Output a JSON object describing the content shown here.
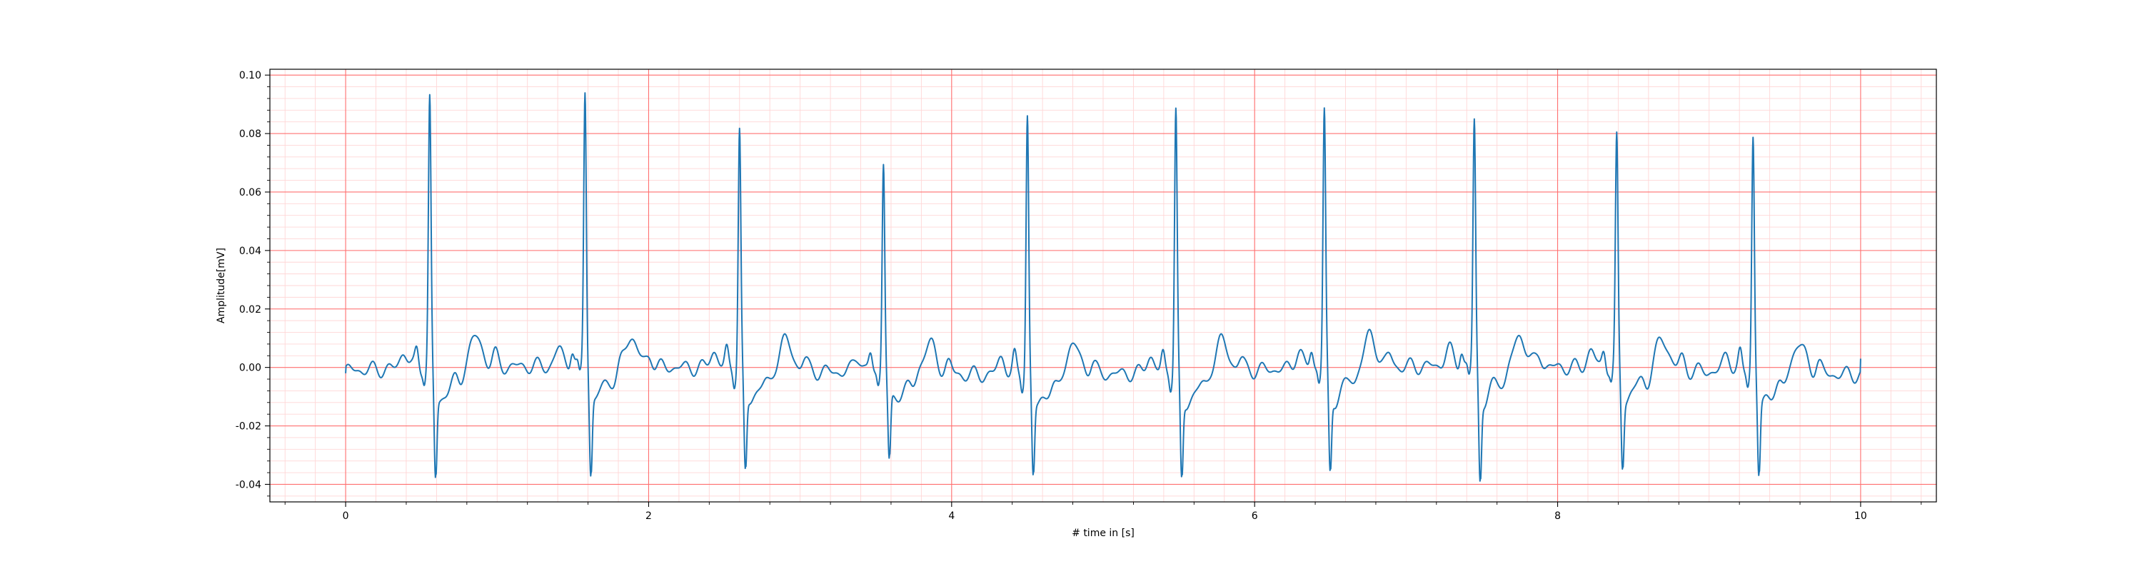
{
  "chart_data": {
    "type": "line",
    "title": "",
    "xlabel": "# time in [s]",
    "ylabel": "Amplitude[mV]",
    "xlim": [
      -0.5,
      10.5
    ],
    "ylim": [
      -0.046,
      0.102
    ],
    "x_ticks": [
      0,
      2,
      4,
      6,
      8,
      10
    ],
    "x_tick_labels": [
      "0",
      "2",
      "4",
      "6",
      "8",
      "10"
    ],
    "y_ticks": [
      -0.04,
      -0.02,
      0.0,
      0.02,
      0.04,
      0.06,
      0.08,
      0.1
    ],
    "y_tick_labels": [
      "-0.04",
      "-0.02",
      "0.00",
      "0.02",
      "0.04",
      "0.06",
      "0.08",
      "0.10"
    ],
    "grid": {
      "major": true,
      "minor": true,
      "major_color": "#ff7070",
      "minor_color": "#ffd6d6"
    },
    "legend": "none",
    "series": [
      {
        "color": "#1f77b4",
        "beats": [
          {
            "r_time": 0.555,
            "r_peak": 0.092,
            "s_trough": -0.038
          },
          {
            "r_time": 1.58,
            "r_peak": 0.095,
            "s_trough": -0.037
          },
          {
            "r_time": 2.6,
            "r_peak": 0.082,
            "s_trough": -0.036
          },
          {
            "r_time": 3.55,
            "r_peak": 0.073,
            "s_trough": -0.031
          },
          {
            "r_time": 4.5,
            "r_peak": 0.089,
            "s_trough": -0.035
          },
          {
            "r_time": 5.48,
            "r_peak": 0.09,
            "s_trough": -0.038
          },
          {
            "r_time": 6.46,
            "r_peak": 0.088,
            "s_trough": -0.037
          },
          {
            "r_time": 7.45,
            "r_peak": 0.084,
            "s_trough": -0.039
          },
          {
            "r_time": 8.39,
            "r_peak": 0.078,
            "s_trough": -0.033
          },
          {
            "r_time": 9.29,
            "r_peak": 0.081,
            "s_trough": -0.035
          }
        ],
        "x_start": 0,
        "x_end": 10,
        "start_value": -0.002,
        "end_value": 0.003
      }
    ]
  }
}
